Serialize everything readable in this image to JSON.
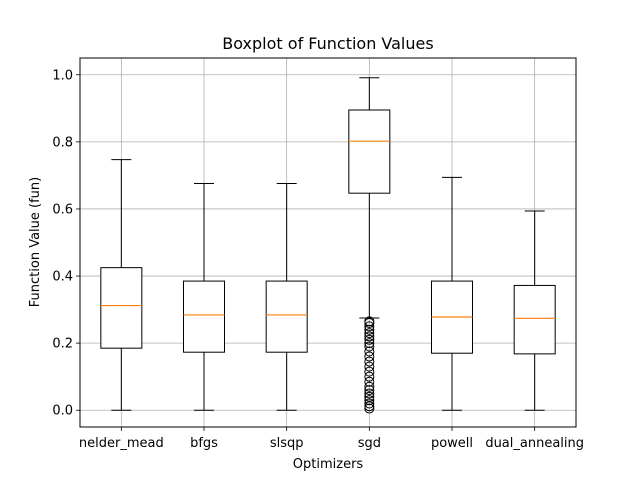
{
  "chart_data": {
    "type": "boxplot",
    "title": "Boxplot of Function Values",
    "xlabel": "Optimizers",
    "ylabel": "Function Value (fun)",
    "ylim": [
      -0.05,
      1.05
    ],
    "yticks": [
      "0.0",
      "0.2",
      "0.4",
      "0.6",
      "0.8",
      "1.0"
    ],
    "grid": true,
    "categories": [
      "nelder_mead",
      "bfgs",
      "slsqp",
      "sgd",
      "powell",
      "dual_annealing"
    ],
    "boxes": [
      {
        "name": "nelder_mead",
        "whisker_low": 0.0,
        "q1": 0.185,
        "median": 0.312,
        "q3": 0.425,
        "whisker_high": 0.747,
        "outliers": []
      },
      {
        "name": "bfgs",
        "whisker_low": 0.0,
        "q1": 0.173,
        "median": 0.284,
        "q3": 0.385,
        "whisker_high": 0.676,
        "outliers": []
      },
      {
        "name": "slsqp",
        "whisker_low": 0.0,
        "q1": 0.173,
        "median": 0.284,
        "q3": 0.385,
        "whisker_high": 0.676,
        "outliers": []
      },
      {
        "name": "sgd",
        "whisker_low": 0.275,
        "q1": 0.647,
        "median": 0.802,
        "q3": 0.895,
        "whisker_high": 0.991,
        "outliers": [
          0.005,
          0.012,
          0.02,
          0.03,
          0.04,
          0.05,
          0.06,
          0.07,
          0.085,
          0.1,
          0.115,
          0.13,
          0.145,
          0.16,
          0.175,
          0.19,
          0.2,
          0.21,
          0.22,
          0.23,
          0.24,
          0.25,
          0.26,
          0.265
        ]
      },
      {
        "name": "powell",
        "whisker_low": 0.0,
        "q1": 0.17,
        "median": 0.278,
        "q3": 0.385,
        "whisker_high": 0.694,
        "outliers": []
      },
      {
        "name": "dual_annealing",
        "whisker_low": 0.0,
        "q1": 0.168,
        "median": 0.274,
        "q3": 0.372,
        "whisker_high": 0.594,
        "outliers": []
      }
    ],
    "colors": {
      "box": "#000000",
      "median": "#ff7f0e",
      "grid": "#b0b0b0",
      "outlier": "#000000"
    }
  }
}
